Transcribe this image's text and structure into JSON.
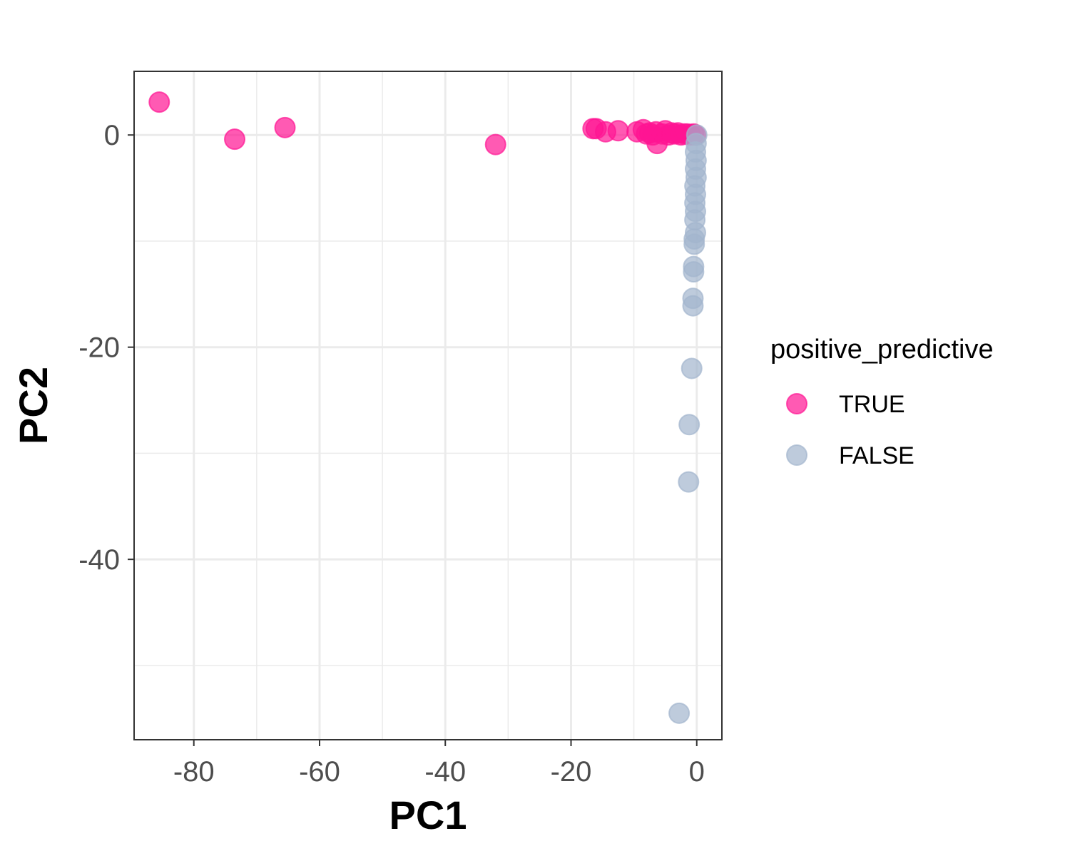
{
  "chart_data": {
    "type": "scatter",
    "title": "",
    "xlabel": "PC1",
    "ylabel": "PC2",
    "xlim": [
      -89.5,
      4.0
    ],
    "ylim": [
      -57.0,
      6.0
    ],
    "x_ticks": [
      -80,
      -60,
      -40,
      -20,
      0
    ],
    "y_ticks": [
      0,
      -20,
      -40
    ],
    "grid": true,
    "legend": {
      "title": "positive_predictive",
      "placement": "right"
    },
    "series": [
      {
        "name": "TRUE",
        "color": "#ff1493",
        "points": [
          {
            "x": -85.5,
            "y": 3.1
          },
          {
            "x": -73.5,
            "y": -0.4
          },
          {
            "x": -65.5,
            "y": 0.7
          },
          {
            "x": -32.0,
            "y": -0.9
          },
          {
            "x": -16.5,
            "y": 0.6
          },
          {
            "x": -16.0,
            "y": 0.6
          },
          {
            "x": -14.5,
            "y": 0.3
          },
          {
            "x": -12.5,
            "y": 0.4
          },
          {
            "x": -9.5,
            "y": 0.3
          },
          {
            "x": -8.5,
            "y": 0.5
          },
          {
            "x": -7.5,
            "y": 0.2
          },
          {
            "x": -6.5,
            "y": 0.3
          },
          {
            "x": -6.3,
            "y": -0.8
          },
          {
            "x": -5.5,
            "y": 0.1
          },
          {
            "x": -5.0,
            "y": 0.4
          },
          {
            "x": -4.5,
            "y": 0.0
          },
          {
            "x": -4.0,
            "y": 0.2
          },
          {
            "x": -3.5,
            "y": 0.1
          },
          {
            "x": -3.0,
            "y": 0.2
          },
          {
            "x": -2.5,
            "y": 0.0
          },
          {
            "x": -2.0,
            "y": 0.1
          },
          {
            "x": -1.5,
            "y": 0.1
          },
          {
            "x": -1.0,
            "y": 0.0
          },
          {
            "x": -0.5,
            "y": 0.1
          },
          {
            "x": -0.2,
            "y": 0.0
          },
          {
            "x": -7.0,
            "y": 0.0
          },
          {
            "x": -8.0,
            "y": 0.1
          }
        ]
      },
      {
        "name": "FALSE",
        "color": "#a2b5cd",
        "points": [
          {
            "x": 0.0,
            "y": 0.0
          },
          {
            "x": -0.1,
            "y": -0.8
          },
          {
            "x": -0.2,
            "y": -1.6
          },
          {
            "x": -0.1,
            "y": -2.4
          },
          {
            "x": -0.2,
            "y": -3.2
          },
          {
            "x": -0.1,
            "y": -4.0
          },
          {
            "x": -0.3,
            "y": -4.8
          },
          {
            "x": -0.2,
            "y": -5.6
          },
          {
            "x": -0.3,
            "y": -6.4
          },
          {
            "x": -0.2,
            "y": -7.2
          },
          {
            "x": -0.3,
            "y": -8.0
          },
          {
            "x": -0.2,
            "y": -9.2
          },
          {
            "x": -0.4,
            "y": -9.8
          },
          {
            "x": -0.4,
            "y": -10.3
          },
          {
            "x": -0.5,
            "y": -12.4
          },
          {
            "x": -0.5,
            "y": -12.9
          },
          {
            "x": -0.6,
            "y": -15.4
          },
          {
            "x": -0.6,
            "y": -16.1
          },
          {
            "x": -0.8,
            "y": -22.0
          },
          {
            "x": -1.2,
            "y": -27.3
          },
          {
            "x": -1.3,
            "y": -32.7
          },
          {
            "x": -2.8,
            "y": -54.5
          }
        ]
      }
    ]
  }
}
